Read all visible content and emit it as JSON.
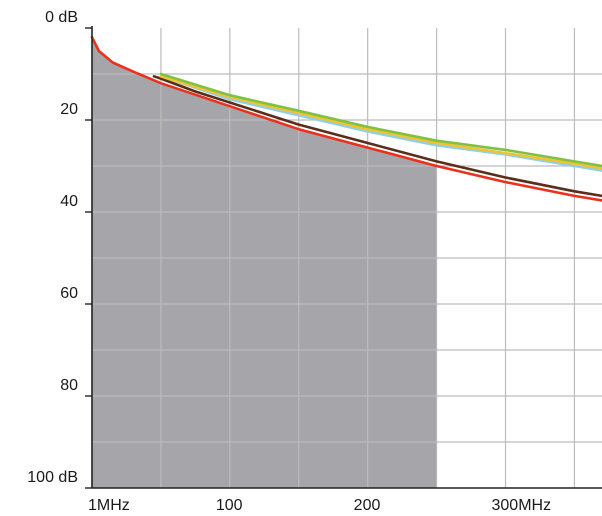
{
  "chart_data": {
    "type": "line",
    "title": "",
    "xlabel": "",
    "ylabel": "",
    "y_axis": {
      "inverted": true,
      "ylim": [
        0,
        100
      ],
      "tick_labels": [
        {
          "value": 0,
          "label": "0 dB"
        },
        {
          "value": 20,
          "label": "20"
        },
        {
          "value": 40,
          "label": "40"
        },
        {
          "value": 60,
          "label": "60"
        },
        {
          "value": 80,
          "label": "80"
        },
        {
          "value": 100,
          "label": "100 dB"
        }
      ],
      "grid_step": 10
    },
    "x_axis": {
      "xlim": [
        0,
        370
      ],
      "tick_labels": [
        {
          "value": 0,
          "label": "1MHz"
        },
        {
          "value": 100,
          "label": "100"
        },
        {
          "value": 200,
          "label": "200"
        },
        {
          "value": 300,
          "label": "300MHz"
        }
      ],
      "grid_values": [
        50,
        100,
        150,
        200,
        250,
        300,
        350
      ]
    },
    "grid": true,
    "shaded_region": {
      "x": [
        0,
        250
      ],
      "color": "#a5a5aa"
    },
    "colors": {
      "red": "#e8321e",
      "dark_brown": "#5a2e1a",
      "green": "#7fc241",
      "yellow": "#f2c230",
      "light_blue": "#8fd0e8",
      "grid": "#bcbcbc",
      "axis": "#222222"
    },
    "series": [
      {
        "color_key": "red",
        "x": [
          0,
          5,
          15,
          30,
          50,
          75,
          100,
          150,
          200,
          250,
          300,
          350,
          370
        ],
        "y": [
          2,
          5,
          7.5,
          9.5,
          12,
          14.5,
          17,
          22,
          26,
          30,
          33.5,
          36.5,
          37.5
        ]
      },
      {
        "color_key": "dark_brown",
        "x": [
          45,
          50,
          75,
          100,
          150,
          200,
          250,
          300,
          350,
          370
        ],
        "y": [
          10.5,
          11,
          13.8,
          16.2,
          21,
          25,
          29,
          32.5,
          35.5,
          36.5
        ]
      },
      {
        "color_key": "light_blue",
        "x": [
          50,
          75,
          100,
          150,
          200,
          250,
          300,
          350,
          370
        ],
        "y": [
          10.5,
          13,
          15.5,
          19,
          22.5,
          25.5,
          27.5,
          30,
          31
        ]
      },
      {
        "color_key": "yellow",
        "x": [
          50,
          75,
          100,
          150,
          200,
          250,
          300,
          350,
          370
        ],
        "y": [
          10.5,
          12.8,
          15,
          18.5,
          22,
          25,
          27.2,
          29.5,
          30.5
        ]
      },
      {
        "color_key": "green",
        "x": [
          50,
          75,
          100,
          150,
          200,
          250,
          300,
          350,
          370
        ],
        "y": [
          10,
          12.3,
          14.6,
          18,
          21.5,
          24.5,
          26.5,
          29,
          30
        ]
      }
    ]
  }
}
